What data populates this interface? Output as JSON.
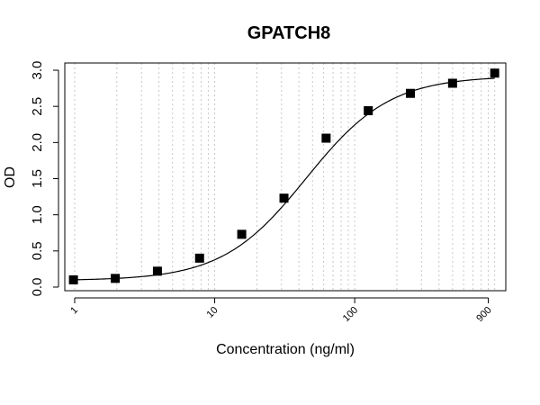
{
  "chart_data": {
    "type": "scatter",
    "title": "GPATCH8",
    "xlabel": "Concentration (ng/ml)",
    "ylabel": "OD",
    "x_scale": "log",
    "xlim": [
      0.85,
      1200
    ],
    "ylim": [
      -0.05,
      3.1
    ],
    "x_ticks": [
      {
        "value": 1,
        "label": "1"
      },
      {
        "value": 10,
        "label": "10"
      },
      {
        "value": 100,
        "label": "100"
      },
      {
        "value": 900,
        "label": "900"
      }
    ],
    "y_ticks": [
      {
        "value": 0.0,
        "label": "0.0"
      },
      {
        "value": 0.5,
        "label": "0.5"
      },
      {
        "value": 1.0,
        "label": "1.0"
      },
      {
        "value": 1.5,
        "label": "1.5"
      },
      {
        "value": 2.0,
        "label": "2.0"
      },
      {
        "value": 2.5,
        "label": "2.5"
      },
      {
        "value": 3.0,
        "label": "3.0"
      }
    ],
    "grid": "vertical dotted gridlines at log minor ticks",
    "series": [
      {
        "marker": "square",
        "color": "#000000",
        "x": [
          0.98,
          1.95,
          3.9,
          7.8,
          15.6,
          31.25,
          62.5,
          125,
          250,
          500,
          1000
        ],
        "y": [
          0.1,
          0.12,
          0.22,
          0.4,
          0.73,
          1.23,
          2.06,
          2.44,
          2.68,
          2.82,
          2.96
        ]
      }
    ],
    "fit_curve": {
      "model": "4PL",
      "bottom": 0.09,
      "top": 2.92,
      "ec50": 45,
      "hill": 1.45,
      "color": "#000000"
    }
  }
}
